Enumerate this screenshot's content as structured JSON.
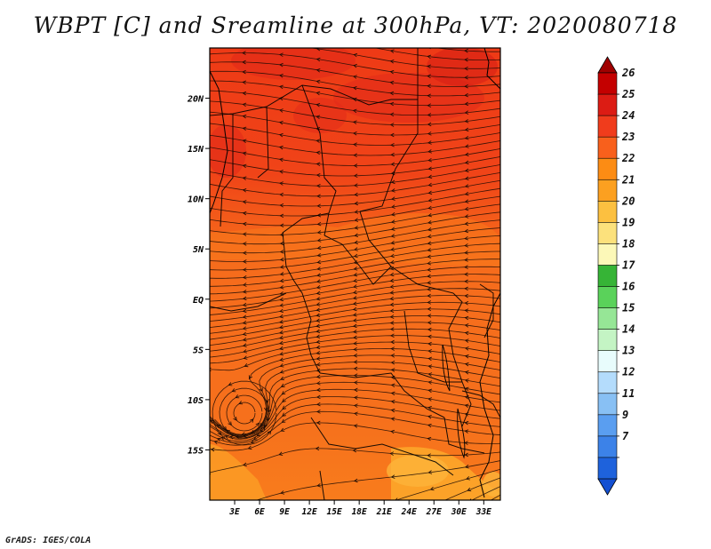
{
  "title": "WBPT [C] and Sreamline at 300hPa, VT: 2020080718",
  "credit": "GrADS: IGES/COLA",
  "map": {
    "lat_labels": [
      {
        "label": "20N",
        "lat": 20
      },
      {
        "label": "15N",
        "lat": 15
      },
      {
        "label": "10N",
        "lat": 10
      },
      {
        "label": "5N",
        "lat": 5
      },
      {
        "label": "EQ",
        "lat": 0
      },
      {
        "label": "5S",
        "lat": -5
      },
      {
        "label": "10S",
        "lat": -10
      },
      {
        "label": "15S",
        "lat": -15
      }
    ],
    "lon_labels": [
      {
        "label": "3E",
        "lon": 3
      },
      {
        "label": "6E",
        "lon": 6
      },
      {
        "label": "9E",
        "lon": 9
      },
      {
        "label": "12E",
        "lon": 12
      },
      {
        "label": "15E",
        "lon": 15
      },
      {
        "label": "18E",
        "lon": 18
      },
      {
        "label": "21E",
        "lon": 21
      },
      {
        "label": "24E",
        "lon": 24
      },
      {
        "label": "27E",
        "lon": 27
      },
      {
        "label": "30E",
        "lon": 30
      },
      {
        "label": "33E",
        "lon": 33
      }
    ],
    "lon_range": [
      0,
      35
    ],
    "lat_range": [
      -20,
      25
    ],
    "wind_direction": "easterly"
  },
  "colorbar": {
    "levels": [
      "26",
      "25",
      "24",
      "23",
      "22",
      "21",
      "20",
      "19",
      "18",
      "17",
      "16",
      "15",
      "14",
      "13",
      "12",
      "11",
      "9",
      "7"
    ],
    "colors": [
      "#c40000",
      "#dc1c14",
      "#f03c1c",
      "#f8601c",
      "#fc8c14",
      "#fca020",
      "#fcc040",
      "#fce17c",
      "#fcf8b8",
      "#36b436",
      "#5ad25a",
      "#96e696",
      "#c4f4c4",
      "#e8fcfc",
      "#b4dcfc",
      "#88c0f4",
      "#5a9ef0",
      "#3c82e8",
      "#1e62dc"
    ],
    "top_color": "#a00000",
    "bottom_color": "#1450d2"
  }
}
